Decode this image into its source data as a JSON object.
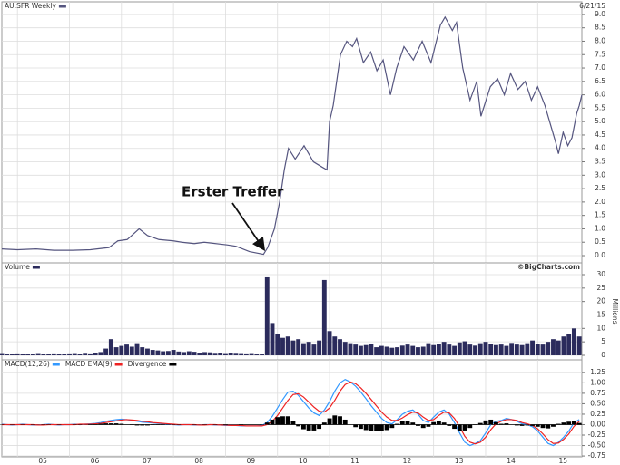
{
  "chart_data": [
    {
      "type": "line",
      "date": "6/21/15",
      "annotation": "Erster Treffer",
      "xlim": [
        4.7,
        15.85
      ],
      "xticks": [
        5,
        6,
        7,
        8,
        9,
        10,
        11,
        12,
        13,
        14,
        15
      ],
      "ylim": [
        -0.27,
        9.47
      ],
      "yticks": [
        {
          "value": 0,
          "label": "0.0"
        },
        0.5,
        {
          "value": 1,
          "label": "1.0"
        },
        1.5,
        {
          "value": 2,
          "label": "2.0"
        },
        2.5,
        {
          "value": 3,
          "label": "3.0"
        },
        3.5,
        {
          "value": 4,
          "label": "4.0"
        },
        4.5,
        {
          "value": 5,
          "label": "5.0"
        },
        5.5,
        {
          "value": 6,
          "label": "6.0"
        },
        6.5,
        {
          "value": 7,
          "label": "7.0"
        },
        7.5,
        {
          "value": 8,
          "label": "8.0"
        },
        8.5,
        {
          "value": 9,
          "label": "9.0"
        }
      ],
      "grid": true,
      "x": [
        4.7,
        5.0,
        5.36,
        5.7,
        6.06,
        6.4,
        6.76,
        6.93,
        7.11,
        7.34,
        7.5,
        7.72,
        8.0,
        8.16,
        8.4,
        8.59,
        9.03,
        9.2,
        9.46,
        9.73,
        9.81,
        9.94,
        10.04,
        10.13,
        10.21,
        10.34,
        10.51,
        10.69,
        10.86,
        10.95,
        11.0,
        11.07,
        11.21,
        11.33,
        11.44,
        11.52,
        11.65,
        11.79,
        11.91,
        12.03,
        12.17,
        12.29,
        12.43,
        12.61,
        12.78,
        12.95,
        13.13,
        13.22,
        13.36,
        13.44,
        13.56,
        13.7,
        13.83,
        13.91,
        14.09,
        14.23,
        14.36,
        14.48,
        14.62,
        14.76,
        14.88,
        15.0,
        15.14,
        15.26,
        15.35,
        15.4,
        15.49,
        15.58,
        15.66,
        15.75,
        15.8,
        15.85
      ],
      "series": [
        {
          "name": "AU:SFR Weekly",
          "color": "#55557f",
          "values": [
            0.25,
            0.22,
            0.25,
            0.2,
            0.2,
            0.22,
            0.3,
            0.55,
            0.6,
            1.0,
            0.75,
            0.6,
            0.55,
            0.5,
            0.45,
            0.5,
            0.4,
            0.35,
            0.15,
            0.05,
            0.3,
            1.0,
            2.0,
            3.2,
            4.0,
            3.6,
            4.1,
            3.5,
            3.3,
            3.2,
            5.0,
            5.6,
            7.5,
            8.0,
            7.8,
            8.1,
            7.2,
            7.6,
            6.9,
            7.3,
            6.0,
            7.0,
            7.8,
            7.3,
            8.0,
            7.2,
            8.6,
            8.9,
            8.4,
            8.7,
            7.0,
            5.8,
            6.5,
            5.2,
            6.3,
            6.6,
            6.0,
            6.8,
            6.2,
            6.5,
            5.8,
            6.3,
            5.6,
            4.8,
            4.2,
            3.8,
            4.6,
            4.1,
            4.4,
            5.3,
            5.6,
            6.0
          ]
        }
      ]
    },
    {
      "type": "bar",
      "credit": "©BigCharts.com",
      "ylabel": "Millions",
      "xlim": [
        4.7,
        15.85
      ],
      "xticks": [
        5,
        6,
        7,
        8,
        9,
        10,
        11,
        12,
        13,
        14,
        15
      ],
      "ylim": [
        -1.69,
        34.38
      ],
      "yticks": [
        0,
        5,
        10,
        15,
        20,
        25,
        30
      ],
      "grid": true,
      "x": [
        4.7,
        4.8,
        4.9,
        5.0,
        5.1,
        5.2,
        5.3,
        5.4,
        5.5,
        5.6,
        5.7,
        5.8,
        5.9,
        6.0,
        6.1,
        6.2,
        6.3,
        6.4,
        6.5,
        6.6,
        6.7,
        6.8,
        6.9,
        7.0,
        7.1,
        7.2,
        7.3,
        7.4,
        7.5,
        7.6,
        7.7,
        7.8,
        7.9,
        8.0,
        8.1,
        8.2,
        8.3,
        8.4,
        8.5,
        8.6,
        8.7,
        8.8,
        8.9,
        9.0,
        9.1,
        9.2,
        9.3,
        9.4,
        9.5,
        9.6,
        9.7,
        9.8,
        9.9,
        10.0,
        10.1,
        10.2,
        10.3,
        10.4,
        10.5,
        10.6,
        10.7,
        10.8,
        10.9,
        11.0,
        11.1,
        11.2,
        11.3,
        11.4,
        11.5,
        11.6,
        11.7,
        11.8,
        11.9,
        12.0,
        12.1,
        12.2,
        12.3,
        12.4,
        12.5,
        12.6,
        12.7,
        12.8,
        12.9,
        13.0,
        13.1,
        13.2,
        13.3,
        13.4,
        13.5,
        13.6,
        13.7,
        13.8,
        13.9,
        14.0,
        14.1,
        14.2,
        14.3,
        14.4,
        14.5,
        14.6,
        14.7,
        14.8,
        14.9,
        15.0,
        15.1,
        15.2,
        15.3,
        15.4,
        15.5,
        15.6,
        15.7,
        15.8
      ],
      "series": [
        {
          "name": "Volume",
          "color": "#2b2b5c",
          "values": [
            0.8,
            0.6,
            0.5,
            0.7,
            0.6,
            0.5,
            0.6,
            0.8,
            0.5,
            0.6,
            0.7,
            0.5,
            0.6,
            0.7,
            0.8,
            0.6,
            0.9,
            0.7,
            1.0,
            1.2,
            2.5,
            6.0,
            3.0,
            3.5,
            4.0,
            3.2,
            4.5,
            3.0,
            2.5,
            2.0,
            1.8,
            1.5,
            1.6,
            2.0,
            1.4,
            1.2,
            1.5,
            1.3,
            1.0,
            1.2,
            1.1,
            0.9,
            1.0,
            0.8,
            1.0,
            0.9,
            0.8,
            0.7,
            0.8,
            0.6,
            0.5,
            29.0,
            12.0,
            8.0,
            6.5,
            7.0,
            5.5,
            6.0,
            4.5,
            5.0,
            4.0,
            5.5,
            28.0,
            9.0,
            7.0,
            6.0,
            5.0,
            4.5,
            4.0,
            3.5,
            3.8,
            4.2,
            3.0,
            3.5,
            3.2,
            2.8,
            3.0,
            3.6,
            4.0,
            3.5,
            3.0,
            3.2,
            4.5,
            3.8,
            4.2,
            5.0,
            4.0,
            3.5,
            4.8,
            5.2,
            4.0,
            3.6,
            4.5,
            5.0,
            4.2,
            3.8,
            4.0,
            3.5,
            4.6,
            4.0,
            3.8,
            4.5,
            5.5,
            4.2,
            4.0,
            5.0,
            6.0,
            5.5,
            7.0,
            8.0,
            10.0,
            7.0
          ]
        }
      ]
    },
    {
      "type": "line",
      "xlim": [
        4.7,
        15.85
      ],
      "xticks": [
        {
          "value": 5,
          "label": "05"
        },
        {
          "value": 6,
          "label": "06"
        },
        {
          "value": 7,
          "label": "07"
        },
        {
          "value": 8,
          "label": "08"
        },
        {
          "value": 9,
          "label": "09"
        },
        {
          "value": 10,
          "label": "10"
        },
        {
          "value": 11,
          "label": "11"
        },
        {
          "value": 12,
          "label": "12"
        },
        {
          "value": 13,
          "label": "13"
        },
        {
          "value": 14,
          "label": "14"
        },
        {
          "value": 15,
          "label": "15"
        }
      ],
      "ylim": [
        -0.77,
        1.55
      ],
      "yticks": [
        1.25,
        {
          "value": 1,
          "label": "1.00"
        },
        0.75,
        {
          "value": 0.5,
          "label": "0.50"
        },
        0.25,
        {
          "value": 0,
          "label": "0.00"
        },
        -0.25,
        {
          "value": -0.5,
          "label": "-0.50"
        },
        -0.75
      ],
      "grid": true,
      "x": [
        4.7,
        4.8,
        4.9,
        5.0,
        5.1,
        5.2,
        5.3,
        5.4,
        5.5,
        5.6,
        5.7,
        5.8,
        5.9,
        6.0,
        6.1,
        6.2,
        6.3,
        6.4,
        6.5,
        6.6,
        6.7,
        6.8,
        6.9,
        7.0,
        7.1,
        7.2,
        7.3,
        7.4,
        7.5,
        7.6,
        7.7,
        7.8,
        7.9,
        8.0,
        8.1,
        8.2,
        8.3,
        8.4,
        8.5,
        8.6,
        8.7,
        8.8,
        8.9,
        9.0,
        9.1,
        9.2,
        9.3,
        9.4,
        9.5,
        9.6,
        9.7,
        9.8,
        9.9,
        10.0,
        10.1,
        10.2,
        10.3,
        10.4,
        10.5,
        10.6,
        10.7,
        10.8,
        10.9,
        11.0,
        11.1,
        11.2,
        11.3,
        11.4,
        11.5,
        11.6,
        11.7,
        11.8,
        11.9,
        12.0,
        12.1,
        12.2,
        12.3,
        12.4,
        12.5,
        12.6,
        12.7,
        12.8,
        12.9,
        13.0,
        13.1,
        13.2,
        13.3,
        13.4,
        13.5,
        13.6,
        13.7,
        13.8,
        13.9,
        14.0,
        14.1,
        14.2,
        14.3,
        14.4,
        14.5,
        14.6,
        14.7,
        14.8,
        14.9,
        15.0,
        15.1,
        15.2,
        15.3,
        15.4,
        15.5,
        15.6,
        15.7,
        15.8
      ],
      "series": [
        {
          "name": "MACD(12,26)",
          "color": "#3399ff",
          "values": [
            0.01,
            0.0,
            -0.01,
            0.0,
            0.01,
            0.0,
            -0.01,
            -0.01,
            0.0,
            0.01,
            0.0,
            -0.01,
            0.0,
            0.0,
            0.01,
            0.0,
            0.01,
            0.02,
            0.03,
            0.05,
            0.08,
            0.1,
            0.12,
            0.13,
            0.12,
            0.1,
            0.08,
            0.06,
            0.05,
            0.04,
            0.03,
            0.02,
            0.01,
            0.0,
            -0.01,
            0.0,
            0.0,
            -0.01,
            -0.01,
            0.0,
            0.0,
            -0.01,
            -0.01,
            -0.02,
            -0.02,
            -0.02,
            -0.03,
            -0.03,
            -0.03,
            -0.03,
            -0.02,
            0.05,
            0.2,
            0.4,
            0.6,
            0.78,
            0.8,
            0.7,
            0.55,
            0.4,
            0.28,
            0.22,
            0.35,
            0.55,
            0.8,
            1.0,
            1.08,
            1.02,
            0.92,
            0.78,
            0.62,
            0.45,
            0.3,
            0.15,
            0.05,
            0.02,
            0.12,
            0.25,
            0.32,
            0.35,
            0.25,
            0.1,
            0.05,
            0.18,
            0.3,
            0.35,
            0.25,
            0.05,
            -0.2,
            -0.42,
            -0.5,
            -0.45,
            -0.38,
            -0.2,
            0.0,
            0.08,
            0.1,
            0.15,
            0.12,
            0.08,
            0.02,
            0.0,
            -0.05,
            -0.15,
            -0.3,
            -0.45,
            -0.5,
            -0.42,
            -0.3,
            -0.15,
            0.05,
            0.12
          ]
        },
        {
          "name": "MACD EMA(9)",
          "color": "#ee2222",
          "values": [
            0.0,
            0.0,
            0.0,
            0.0,
            0.0,
            0.0,
            0.0,
            -0.01,
            -0.01,
            0.0,
            0.0,
            0.0,
            0.0,
            0.0,
            0.0,
            0.01,
            0.01,
            0.01,
            0.02,
            0.03,
            0.05,
            0.07,
            0.09,
            0.11,
            0.12,
            0.11,
            0.1,
            0.08,
            0.07,
            0.05,
            0.04,
            0.03,
            0.02,
            0.01,
            0.0,
            0.0,
            0.0,
            0.0,
            -0.01,
            -0.01,
            0.0,
            0.0,
            -0.01,
            -0.01,
            -0.02,
            -0.02,
            -0.02,
            -0.03,
            -0.03,
            -0.03,
            -0.03,
            0.0,
            0.08,
            0.22,
            0.4,
            0.58,
            0.72,
            0.74,
            0.66,
            0.54,
            0.42,
            0.32,
            0.3,
            0.4,
            0.58,
            0.8,
            0.96,
            1.02,
            0.98,
            0.88,
            0.75,
            0.6,
            0.45,
            0.3,
            0.18,
            0.1,
            0.1,
            0.16,
            0.24,
            0.3,
            0.28,
            0.18,
            0.1,
            0.12,
            0.22,
            0.3,
            0.28,
            0.15,
            -0.05,
            -0.28,
            -0.42,
            -0.46,
            -0.42,
            -0.3,
            -0.12,
            0.02,
            0.08,
            0.12,
            0.12,
            0.1,
            0.05,
            0.02,
            -0.02,
            -0.1,
            -0.22,
            -0.36,
            -0.45,
            -0.44,
            -0.35,
            -0.22,
            -0.04,
            0.08
          ]
        },
        {
          "name": "Divergence",
          "color": "#000000",
          "type": "bar",
          "values": [
            0.01,
            0,
            -0.01,
            0,
            0.01,
            0,
            -0.01,
            0,
            0.01,
            0.01,
            0,
            -0.01,
            0,
            0,
            0.01,
            -0.01,
            0,
            0.01,
            0.01,
            0.02,
            0.03,
            0.03,
            0.03,
            0.02,
            0,
            -0.01,
            -0.02,
            -0.02,
            -0.02,
            -0.01,
            -0.01,
            -0.01,
            -0.01,
            -0.01,
            -0.01,
            0,
            0,
            -0.01,
            0,
            0.01,
            0,
            -0.01,
            0,
            -0.01,
            0,
            0,
            -0.01,
            0,
            0,
            0,
            0.01,
            0.05,
            0.12,
            0.18,
            0.2,
            0.2,
            0.08,
            -0.04,
            -0.11,
            -0.14,
            -0.14,
            -0.1,
            0.05,
            0.15,
            0.22,
            0.2,
            0.12,
            0,
            -0.06,
            -0.1,
            -0.13,
            -0.15,
            -0.15,
            -0.15,
            -0.13,
            -0.08,
            0.02,
            0.09,
            0.08,
            0.05,
            -0.03,
            -0.08,
            -0.05,
            0.06,
            0.08,
            0.05,
            -0.03,
            -0.1,
            -0.15,
            -0.14,
            -0.08,
            0.01,
            0.04,
            0.1,
            0.12,
            0.06,
            0.02,
            0.03,
            0,
            -0.02,
            -0.03,
            -0.02,
            -0.03,
            -0.05,
            -0.08,
            -0.09,
            -0.05,
            0.02,
            0.05,
            0.07,
            0.09,
            0.04
          ]
        }
      ]
    }
  ]
}
